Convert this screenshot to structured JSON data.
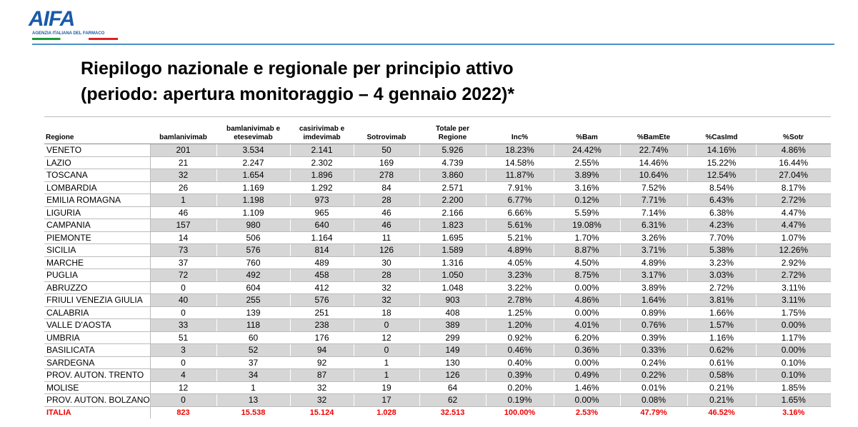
{
  "header": {
    "logo": "AIFA",
    "agency": "AGENZIA ITALIANA DEL FARMACO"
  },
  "title": [
    "Riepilogo nazionale e regionale per principio attivo",
    "(periodo: apertura monitoraggio – 4 gennaio 2022)*"
  ],
  "table": {
    "columns": [
      "Regione",
      "bamlanivimab",
      "bamlanivimab e etesevimab",
      "casirivimab e imdevimab",
      "Sotrovimab",
      "Totale per Regione",
      "Inc%",
      "%Bam",
      "%BamEte",
      "%CasImd",
      "%Sotr"
    ],
    "rows": [
      [
        "VENETO",
        "201",
        "3.534",
        "2.141",
        "50",
        "5.926",
        "18.23%",
        "24.42%",
        "22.74%",
        "14.16%",
        "4.86%"
      ],
      [
        "LAZIO",
        "21",
        "2.247",
        "2.302",
        "169",
        "4.739",
        "14.58%",
        "2.55%",
        "14.46%",
        "15.22%",
        "16.44%"
      ],
      [
        "TOSCANA",
        "32",
        "1.654",
        "1.896",
        "278",
        "3.860",
        "11.87%",
        "3.89%",
        "10.64%",
        "12.54%",
        "27.04%"
      ],
      [
        "LOMBARDIA",
        "26",
        "1.169",
        "1.292",
        "84",
        "2.571",
        "7.91%",
        "3.16%",
        "7.52%",
        "8.54%",
        "8.17%"
      ],
      [
        "EMILIA ROMAGNA",
        "1",
        "1.198",
        "973",
        "28",
        "2.200",
        "6.77%",
        "0.12%",
        "7.71%",
        "6.43%",
        "2.72%"
      ],
      [
        "LIGURIA",
        "46",
        "1.109",
        "965",
        "46",
        "2.166",
        "6.66%",
        "5.59%",
        "7.14%",
        "6.38%",
        "4.47%"
      ],
      [
        "CAMPANIA",
        "157",
        "980",
        "640",
        "46",
        "1.823",
        "5.61%",
        "19.08%",
        "6.31%",
        "4.23%",
        "4.47%"
      ],
      [
        "PIEMONTE",
        "14",
        "506",
        "1.164",
        "11",
        "1.695",
        "5.21%",
        "1.70%",
        "3.26%",
        "7.70%",
        "1.07%"
      ],
      [
        "SICILIA",
        "73",
        "576",
        "814",
        "126",
        "1.589",
        "4.89%",
        "8.87%",
        "3.71%",
        "5.38%",
        "12.26%"
      ],
      [
        "MARCHE",
        "37",
        "760",
        "489",
        "30",
        "1.316",
        "4.05%",
        "4.50%",
        "4.89%",
        "3.23%",
        "2.92%"
      ],
      [
        "PUGLIA",
        "72",
        "492",
        "458",
        "28",
        "1.050",
        "3.23%",
        "8.75%",
        "3.17%",
        "3.03%",
        "2.72%"
      ],
      [
        "ABRUZZO",
        "0",
        "604",
        "412",
        "32",
        "1.048",
        "3.22%",
        "0.00%",
        "3.89%",
        "2.72%",
        "3.11%"
      ],
      [
        "FRIULI VENEZIA GIULIA",
        "40",
        "255",
        "576",
        "32",
        "903",
        "2.78%",
        "4.86%",
        "1.64%",
        "3.81%",
        "3.11%"
      ],
      [
        "CALABRIA",
        "0",
        "139",
        "251",
        "18",
        "408",
        "1.25%",
        "0.00%",
        "0.89%",
        "1.66%",
        "1.75%"
      ],
      [
        "VALLE D'AOSTA",
        "33",
        "118",
        "238",
        "0",
        "389",
        "1.20%",
        "4.01%",
        "0.76%",
        "1.57%",
        "0.00%"
      ],
      [
        "UMBRIA",
        "51",
        "60",
        "176",
        "12",
        "299",
        "0.92%",
        "6.20%",
        "0.39%",
        "1.16%",
        "1.17%"
      ],
      [
        "BASILICATA",
        "3",
        "52",
        "94",
        "0",
        "149",
        "0.46%",
        "0.36%",
        "0.33%",
        "0.62%",
        "0.00%"
      ],
      [
        "SARDEGNA",
        "0",
        "37",
        "92",
        "1",
        "130",
        "0.40%",
        "0.00%",
        "0.24%",
        "0.61%",
        "0.10%"
      ],
      [
        "PROV. AUTON. TRENTO",
        "4",
        "34",
        "87",
        "1",
        "126",
        "0.39%",
        "0.49%",
        "0.22%",
        "0.58%",
        "0.10%"
      ],
      [
        "MOLISE",
        "12",
        "1",
        "32",
        "19",
        "64",
        "0.20%",
        "1.46%",
        "0.01%",
        "0.21%",
        "1.85%"
      ],
      [
        "PROV. AUTON. BOLZANO",
        "0",
        "13",
        "32",
        "17",
        "62",
        "0.19%",
        "0.00%",
        "0.08%",
        "0.21%",
        "1.65%"
      ]
    ],
    "total": [
      "ITALIA",
      "823",
      "15.538",
      "15.124",
      "1.028",
      "32.513",
      "100.00%",
      "2.53%",
      "47.79%",
      "46.52%",
      "3.16%"
    ]
  }
}
